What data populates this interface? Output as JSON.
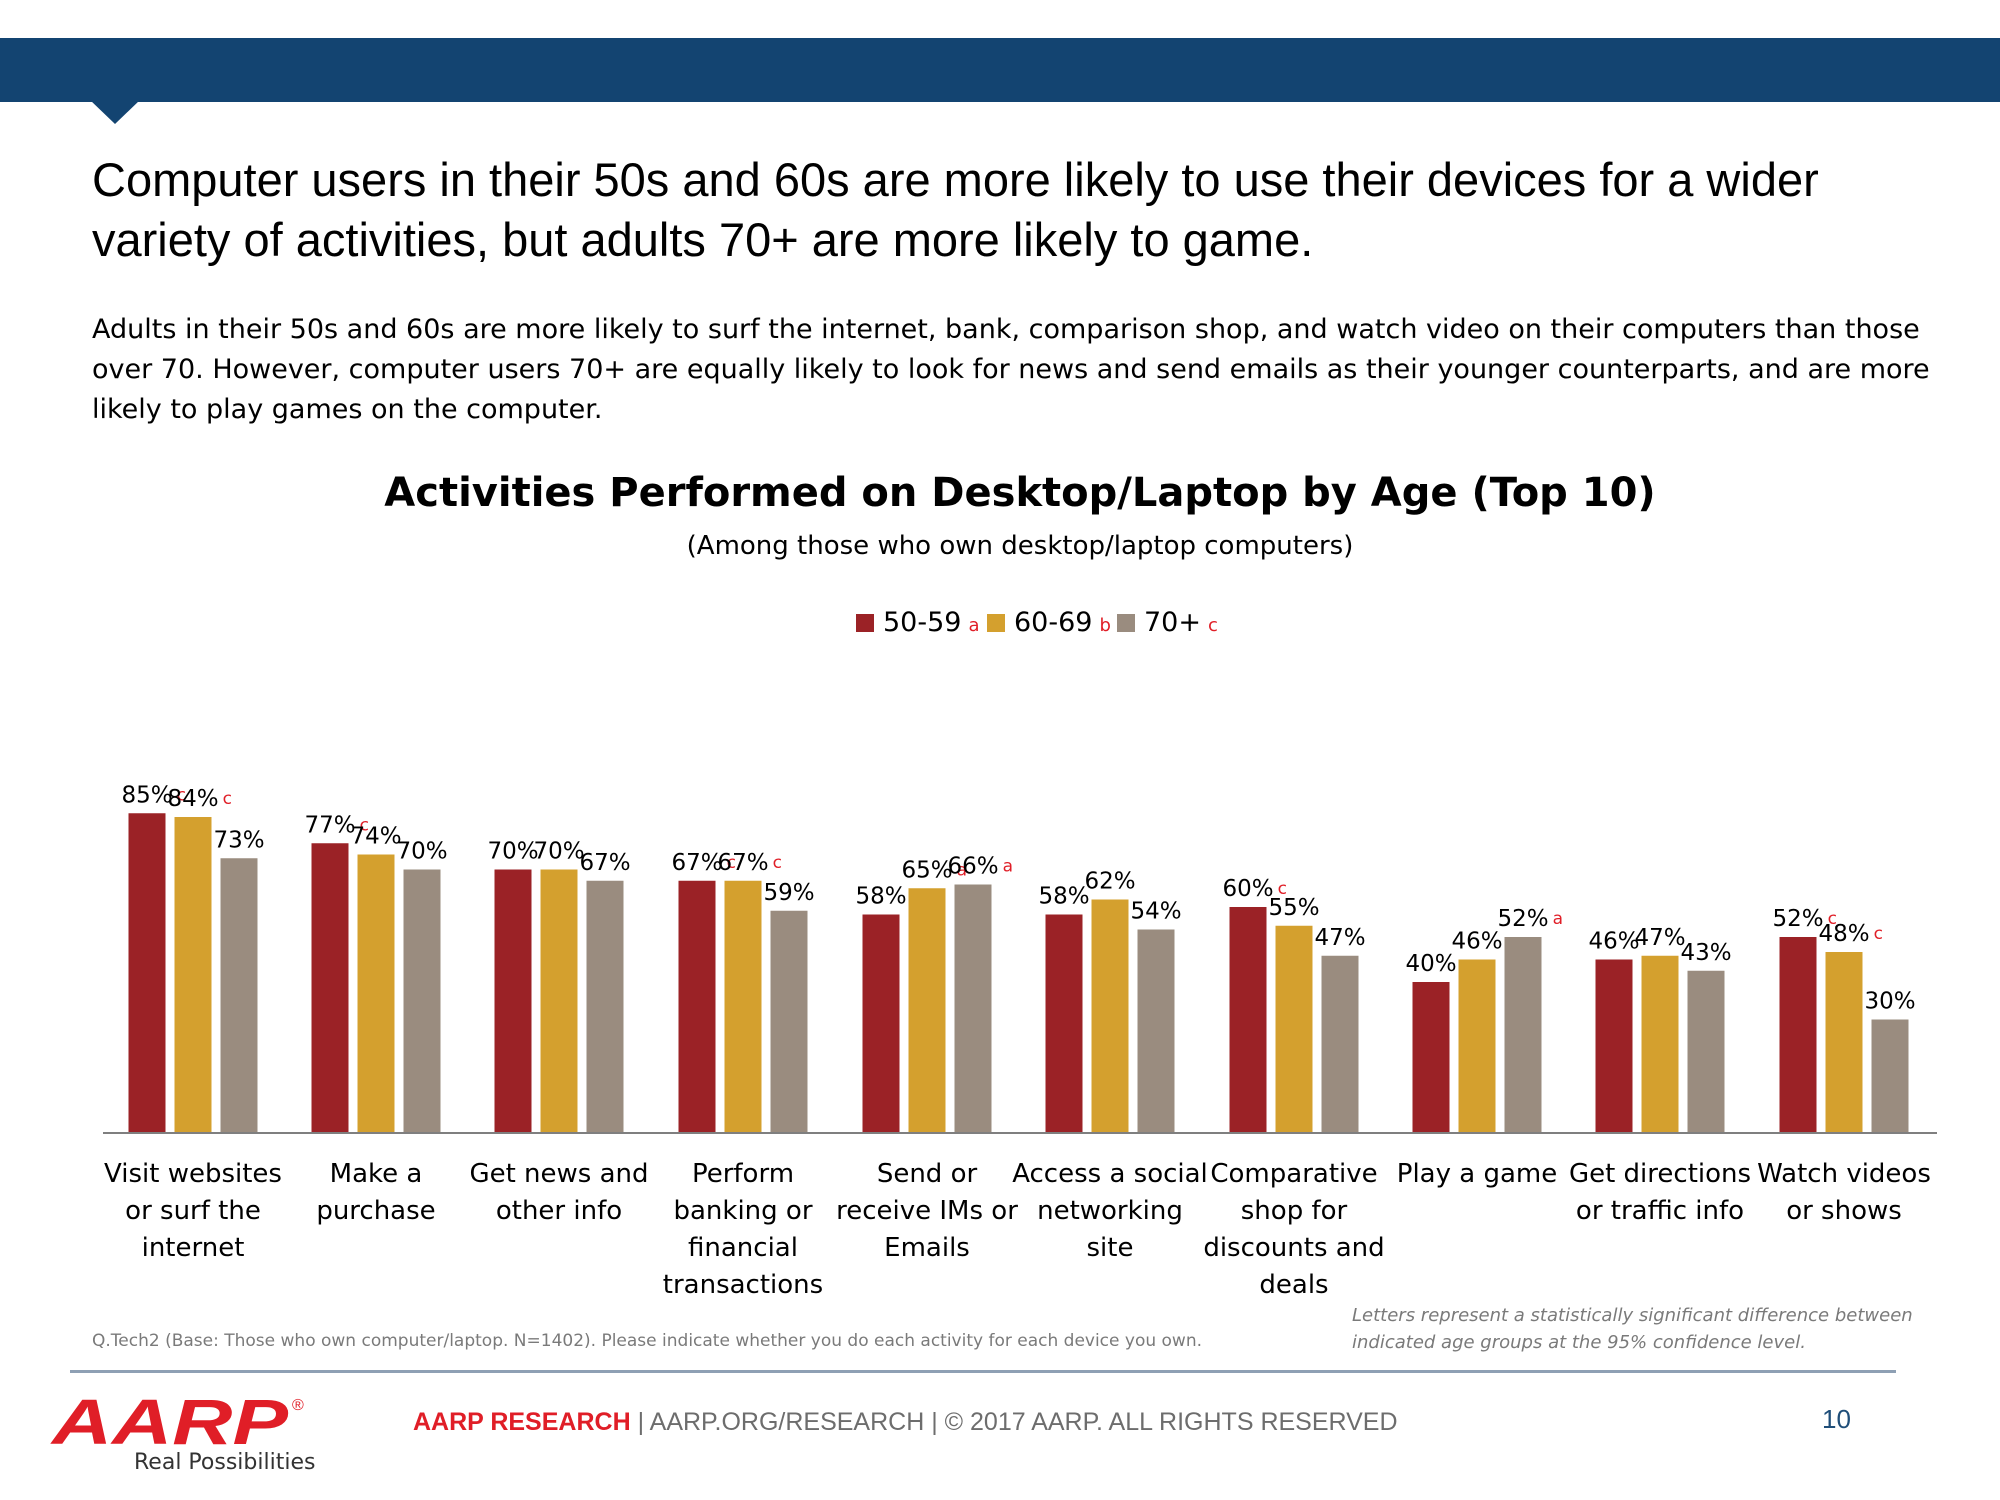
{
  "header": {
    "headline": "Computer users in their 50s and 60s are more likely to use their devices for a wider variety of activities, but adults 70+ are more likely to game.",
    "intro": "Adults in their 50s and 60s are more likely to surf the internet, bank, comparison shop, and watch video on their computers than those over 70. However, computer users 70+ are equally likely to look for news and send emails as their younger counterparts, and are more likely to play games on the computer."
  },
  "colors": {
    "band": "#134471",
    "series_50_59": "#9b2226",
    "series_60_69": "#d4a02e",
    "series_70_plus": "#9a8c7f",
    "sig_letter": "#e01e27"
  },
  "chart_data": {
    "type": "bar",
    "title": "Activities Performed on Desktop/Laptop by Age (Top 10)",
    "subtitle": "(Among those who own desktop/laptop computers)",
    "legend_position": "top-center",
    "grid": false,
    "ylim": [
      0,
      100
    ],
    "categories": [
      [
        "Visit websites",
        "or surf the",
        "internet"
      ],
      [
        "Make a",
        "purchase"
      ],
      [
        "Get news and",
        "other info"
      ],
      [
        "Perform",
        "banking or",
        "financial",
        "transactions"
      ],
      [
        "Send or",
        "receive IMs or",
        "Emails"
      ],
      [
        "Access a social",
        "networking",
        "site"
      ],
      [
        "Comparative",
        "shop for",
        "discounts and",
        "deals"
      ],
      [
        "Play a game"
      ],
      [
        "Get directions",
        "or traffic info"
      ],
      [
        "Watch videos",
        "or shows"
      ]
    ],
    "series": [
      {
        "name": "50-59",
        "letter": "a",
        "values": [
          85,
          77,
          70,
          67,
          58,
          58,
          60,
          40,
          46,
          52
        ],
        "labels": [
          "85%",
          "77%",
          "70%",
          "67%",
          "58%",
          "58%",
          "60%",
          "40%",
          "46%",
          "52%"
        ],
        "sig": [
          "c",
          "c",
          "",
          "c",
          "",
          "",
          "c",
          "",
          "",
          "c"
        ]
      },
      {
        "name": "60-69",
        "letter": "b",
        "values": [
          84,
          74,
          70,
          67,
          65,
          62,
          55,
          46,
          47,
          48
        ],
        "labels": [
          "84%",
          "74%",
          "70%",
          "67%",
          "65%",
          "62%",
          "55%",
          "46%",
          "47%",
          "48%"
        ],
        "sig": [
          "c",
          "",
          "",
          "c",
          "a",
          "",
          "",
          "",
          "",
          "c"
        ]
      },
      {
        "name": "70+",
        "letter": "c",
        "values": [
          73,
          70,
          67,
          59,
          66,
          54,
          47,
          52,
          43,
          30
        ],
        "labels": [
          "73%",
          "70%",
          "67%",
          "59%",
          "66%",
          "54%",
          "47%",
          "52%",
          "43%",
          "30%"
        ],
        "sig": [
          "",
          "",
          "",
          "",
          "a",
          "",
          "",
          "a",
          "",
          ""
        ]
      }
    ]
  },
  "footer": {
    "question_note": "Q.Tech2 (Base: Those who own computer/laptop. N=1402). Please indicate whether you do each activity for each device you own.",
    "significance_note": "Letters represent a statistically significant difference between indicated age groups at the 95% confidence level.",
    "logo_text": "AARP",
    "registered_mark": "®",
    "tagline": "Real Possibilities",
    "brand": "AARP RESEARCH",
    "rest": "  |  AARP.ORG/RESEARCH  |  © 2017 AARP. ALL RIGHTS RESERVED",
    "page_number": "10"
  }
}
